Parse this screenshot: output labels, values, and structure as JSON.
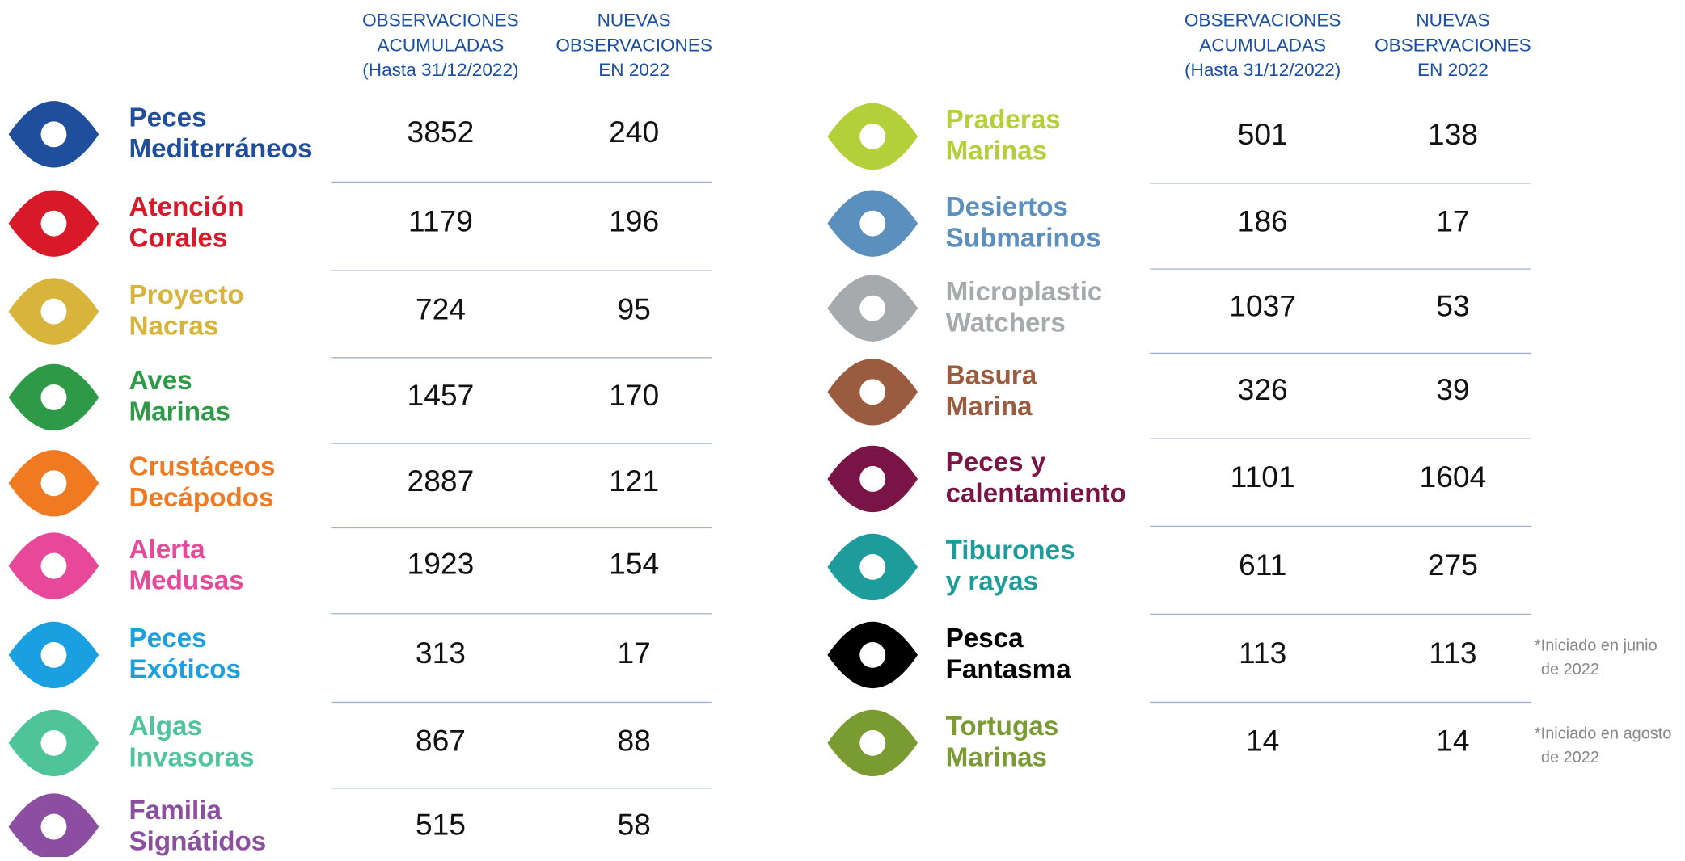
{
  "left": {
    "headers": [
      [
        "OBSERVACIONES",
        "ACUMULADAS",
        "(Hasta 31/12/2022)"
      ],
      [
        "NUEVAS",
        "OBSERVACIONES",
        "EN 2022"
      ]
    ],
    "rows": [
      {
        "name": [
          "Peces",
          "Mediterráneos"
        ],
        "total": "3852",
        "new": "240",
        "color": "#1f4e9c"
      },
      {
        "name": [
          "Atención",
          "Corales"
        ],
        "total": "1179",
        "new": "196",
        "color": "#d7192a"
      },
      {
        "name": [
          "Proyecto",
          "Nacras"
        ],
        "total": "724",
        "new": "95",
        "color": "#d9b43a"
      },
      {
        "name": [
          "Aves",
          "Marinas"
        ],
        "total": "1457",
        "new": "170",
        "color": "#2e9a48"
      },
      {
        "name": [
          "Crustáceos",
          "Decápodos"
        ],
        "total": "2887",
        "new": "121",
        "color": "#f07a22"
      },
      {
        "name": [
          "Alerta",
          "Medusas"
        ],
        "total": "1923",
        "new": "154",
        "color": "#e8489a"
      },
      {
        "name": [
          "Peces",
          "Exóticos"
        ],
        "total": "313",
        "new": "17",
        "color": "#1a9fe0"
      },
      {
        "name": [
          "Algas",
          "Invasoras"
        ],
        "total": "867",
        "new": "88",
        "color": "#4fc49a"
      },
      {
        "name": [
          "Familia",
          "Signátidos"
        ],
        "total": "515",
        "new": "58",
        "color": "#8c4ea0"
      }
    ]
  },
  "right": {
    "headers": [
      [
        "OBSERVACIONES",
        "ACUMULADAS",
        "(Hasta 31/12/2022)"
      ],
      [
        "NUEVAS",
        "OBSERVACIONES",
        "EN 2022"
      ]
    ],
    "rows": [
      {
        "name": [
          "Praderas",
          "Marinas"
        ],
        "total": "501",
        "new": "138",
        "color": "#b5cf3a"
      },
      {
        "name": [
          "Desiertos",
          "Submarinos"
        ],
        "total": "186",
        "new": "17",
        "color": "#5b8fbd"
      },
      {
        "name": [
          "Microplastic",
          "Watchers"
        ],
        "total": "1037",
        "new": "53",
        "color": "#a7aaac"
      },
      {
        "name": [
          "Basura",
          "Marina"
        ],
        "total": "326",
        "new": "39",
        "color": "#9a5b3e"
      },
      {
        "name": [
          "Peces y",
          "calentamiento"
        ],
        "total": "1101",
        "new": "1604",
        "color": "#7a1346"
      },
      {
        "name": [
          "Tiburones",
          "y rayas"
        ],
        "total": "611",
        "new": "275",
        "color": "#1e9b9b"
      },
      {
        "name": [
          "Pesca",
          "Fantasma"
        ],
        "total": "113",
        "new": "113",
        "color": "#000000",
        "note": [
          "*Iniciado en junio",
          "de 2022"
        ]
      },
      {
        "name": [
          "Tortugas",
          "Marinas"
        ],
        "total": "14",
        "new": "14",
        "color": "#7a9a32",
        "note": [
          "*Iniciado en agosto",
          "de 2022"
        ]
      }
    ]
  }
}
